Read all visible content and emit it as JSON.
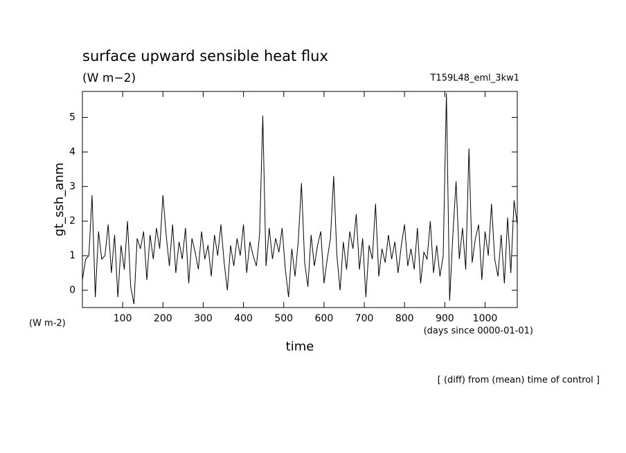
{
  "chart_data": {
    "type": "line",
    "title": "surface upward sensible heat flux",
    "subtitle": "(W m−2)",
    "run_label": "T159L48_eml_3kw1",
    "y_label": "gt_ssh_anm",
    "y_unit": "(W m-2)",
    "x_unit": "(days since 0000-01-01)",
    "x_label": "time",
    "footnote": "[ (diff) from (mean) time of control ]",
    "xlim": [
      0,
      1080
    ],
    "ylim": [
      -0.5,
      5.75
    ],
    "xticks": [
      100,
      200,
      300,
      400,
      500,
      600,
      700,
      800,
      900,
      1000
    ],
    "yticks": [
      0,
      1,
      2,
      3,
      4,
      5
    ],
    "color": "#000000",
    "x": [
      0,
      8,
      16,
      24,
      32,
      40,
      48,
      56,
      64,
      72,
      80,
      88,
      96,
      104,
      112,
      120,
      128,
      136,
      144,
      152,
      160,
      168,
      176,
      184,
      192,
      200,
      208,
      216,
      224,
      232,
      240,
      248,
      256,
      264,
      272,
      280,
      288,
      296,
      304,
      312,
      320,
      328,
      336,
      344,
      352,
      360,
      368,
      376,
      384,
      392,
      400,
      408,
      416,
      424,
      432,
      440,
      448,
      456,
      464,
      472,
      480,
      488,
      496,
      504,
      512,
      520,
      528,
      536,
      544,
      552,
      560,
      568,
      576,
      584,
      592,
      600,
      608,
      616,
      624,
      632,
      640,
      648,
      656,
      664,
      672,
      680,
      688,
      696,
      704,
      712,
      720,
      728,
      736,
      744,
      752,
      760,
      768,
      776,
      784,
      792,
      800,
      808,
      816,
      824,
      832,
      840,
      848,
      856,
      864,
      872,
      880,
      888,
      896,
      904,
      912,
      920,
      928,
      936,
      944,
      952,
      960,
      968,
      976,
      984,
      992,
      1000,
      1008,
      1016,
      1024,
      1032,
      1040,
      1048,
      1056,
      1064,
      1072,
      1080
    ],
    "values": [
      0.3,
      0.9,
      1.0,
      2.75,
      -0.2,
      1.7,
      0.9,
      1.0,
      1.9,
      0.5,
      1.6,
      -0.2,
      1.3,
      0.6,
      2.0,
      0.1,
      -0.4,
      1.5,
      1.2,
      1.7,
      0.3,
      1.6,
      0.9,
      1.8,
      1.2,
      2.75,
      1.6,
      0.7,
      1.9,
      0.5,
      1.4,
      0.9,
      1.8,
      0.2,
      1.5,
      1.1,
      0.6,
      1.7,
      0.9,
      1.3,
      0.4,
      1.6,
      1.0,
      1.9,
      0.8,
      0.0,
      1.3,
      0.7,
      1.5,
      1.0,
      1.9,
      0.5,
      1.4,
      1.0,
      0.7,
      1.6,
      5.05,
      0.7,
      1.8,
      0.9,
      1.5,
      1.1,
      1.8,
      0.6,
      -0.2,
      1.2,
      0.4,
      1.4,
      3.1,
      0.8,
      0.1,
      1.6,
      0.7,
      1.3,
      1.7,
      0.2,
      0.9,
      1.5,
      3.3,
      1.0,
      0.0,
      1.4,
      0.6,
      1.7,
      1.2,
      2.2,
      0.6,
      1.5,
      -0.2,
      1.3,
      0.9,
      2.5,
      0.4,
      1.2,
      0.8,
      1.6,
      0.9,
      1.4,
      0.5,
      1.3,
      1.9,
      0.7,
      1.2,
      0.6,
      1.8,
      0.2,
      1.1,
      0.9,
      2.0,
      0.5,
      1.3,
      0.4,
      1.0,
      5.7,
      -0.3,
      1.6,
      3.15,
      0.9,
      1.8,
      0.6,
      4.1,
      0.8,
      1.5,
      1.9,
      0.3,
      1.7,
      1.0,
      2.5,
      0.9,
      0.4,
      1.6,
      0.2,
      2.1,
      0.5,
      2.6,
      1.9
    ]
  }
}
